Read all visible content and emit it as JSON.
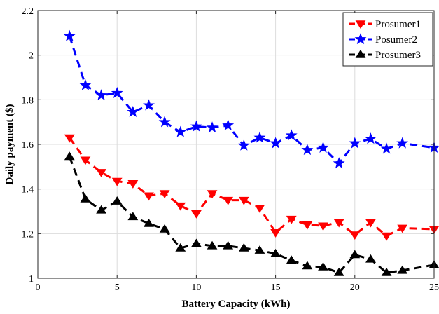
{
  "chart_data": {
    "type": "line",
    "xlabel": "Battery Capacity (kWh)",
    "ylabel": "Daily payment ($)",
    "xlim": [
      0,
      25
    ],
    "ylim": [
      1,
      2.2
    ],
    "xticks": [
      0,
      5,
      10,
      15,
      20,
      25
    ],
    "yticks": [
      1,
      1.2,
      1.4,
      1.6,
      1.8,
      2,
      2.2
    ],
    "xtick_labels": [
      "0",
      "5",
      "10",
      "15",
      "20",
      "25"
    ],
    "ytick_labels": [
      "1",
      "1.2",
      "1.4",
      "1.6",
      "1.8",
      "2",
      "2.2"
    ],
    "grid": true,
    "legend_position": "top-right",
    "x": [
      2,
      3,
      4,
      5,
      6,
      7,
      8,
      9,
      10,
      11,
      12,
      13,
      14,
      15,
      16,
      17,
      18,
      19,
      20,
      21,
      22,
      23,
      25
    ],
    "series": [
      {
        "name": "Prosumer1",
        "color": "#ff0000",
        "marker": "triangle-down",
        "values": [
          1.63,
          1.53,
          1.475,
          1.435,
          1.425,
          1.37,
          1.38,
          1.325,
          1.29,
          1.38,
          1.35,
          1.35,
          1.315,
          1.205,
          1.265,
          1.24,
          1.235,
          1.25,
          1.195,
          1.25,
          1.19,
          1.225,
          1.22
        ]
      },
      {
        "name": "Posumer2",
        "color": "#0000ff",
        "marker": "star",
        "values": [
          2.085,
          1.865,
          1.82,
          1.83,
          1.745,
          1.775,
          1.7,
          1.655,
          1.68,
          1.675,
          1.685,
          1.595,
          1.63,
          1.605,
          1.64,
          1.575,
          1.585,
          1.515,
          1.605,
          1.625,
          1.58,
          1.605,
          1.585
        ]
      },
      {
        "name": "Prosumer3",
        "color": "#000000",
        "marker": "triangle-up",
        "values": [
          1.545,
          1.355,
          1.305,
          1.345,
          1.275,
          1.245,
          1.22,
          1.135,
          1.155,
          1.145,
          1.145,
          1.135,
          1.125,
          1.11,
          1.08,
          1.055,
          1.05,
          1.025,
          1.105,
          1.085,
          1.025,
          1.035,
          1.06
        ]
      }
    ]
  }
}
